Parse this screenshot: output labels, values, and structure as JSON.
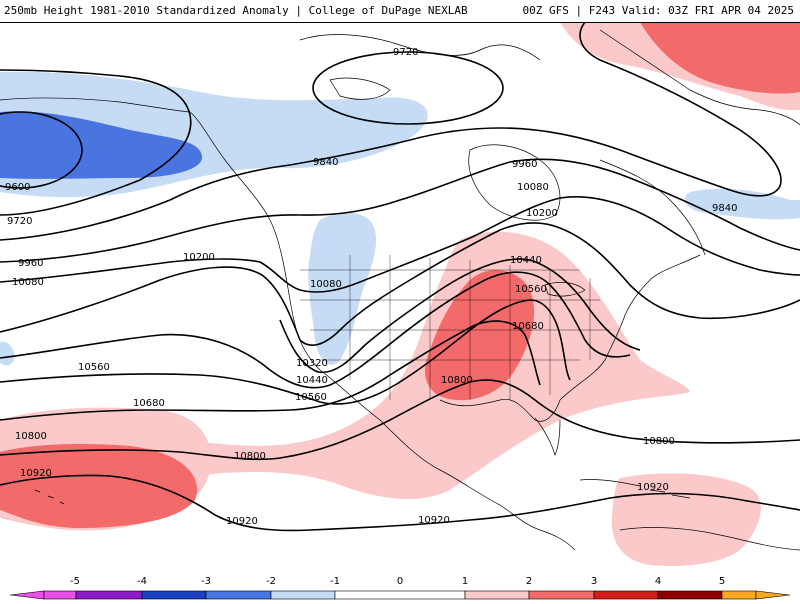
{
  "header": {
    "title_left": "250mb Height 1981-2010 Standardized Anomaly | College of DuPage NEXLAB",
    "title_right": "00Z GFS | F243 Valid: 03Z FRI APR 04 2025"
  },
  "colors": {
    "neg5": "#e84fe6",
    "neg4": "#8a1bc5",
    "neg3": "#1a3fbf",
    "neg2": "#4a74e0",
    "neg1": "#c6dcf5",
    "pos1": "#fbc9c9",
    "pos2": "#f36a6a",
    "pos3": "#d41c1c",
    "pos4": "#8b0000",
    "pos5": "#f7a821"
  },
  "contour_labels": [
    "9720",
    "9840",
    "9600",
    "9720",
    "9960",
    "10080",
    "9960",
    "10080",
    "9840",
    "10200",
    "10200",
    "10440",
    "10560",
    "10080",
    "10680",
    "10320",
    "10440",
    "10560",
    "10560",
    "10680",
    "10800",
    "10800",
    "10800",
    "10920",
    "10920",
    "10920",
    "10920"
  ],
  "colorbar": {
    "ticks": [
      "-5",
      "-4",
      "-3",
      "-2",
      "-1",
      "0",
      "1",
      "2",
      "3",
      "4",
      "5"
    ]
  }
}
